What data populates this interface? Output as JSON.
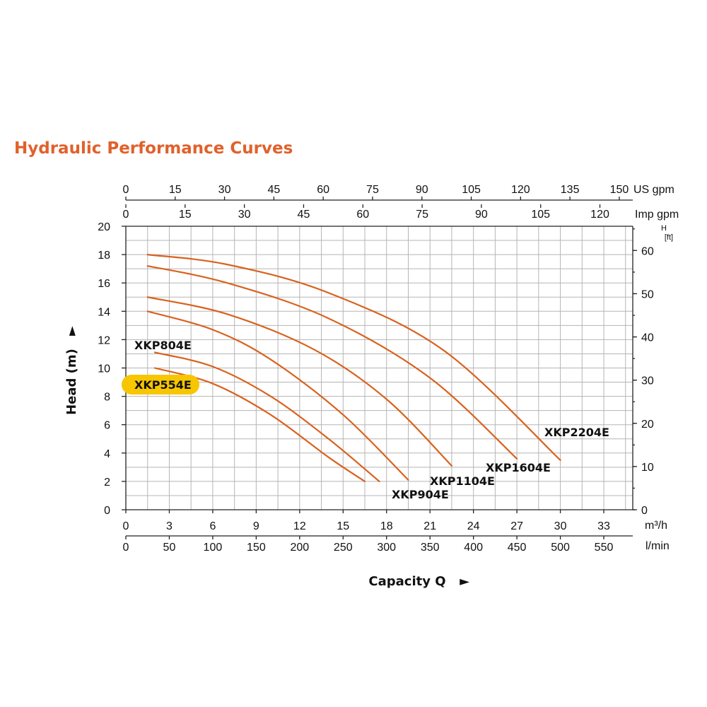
{
  "chart_data": {
    "type": "line",
    "title": "Hydraulic Performance Curves",
    "xlabel": "Capacity Q",
    "xlabel_arrow": "►",
    "ylabel": "Head (m)",
    "ylabel_arrow": "►",
    "xlim": [
      0,
      35
    ],
    "ylim": [
      0,
      20
    ],
    "grid": true,
    "x_unit": "m³/h",
    "x_ticks": [
      "0",
      "3",
      "6",
      "9",
      "12",
      "15",
      "18",
      "21",
      "24",
      "27",
      "30",
      "33"
    ],
    "y_ticks": [
      "0",
      "2",
      "4",
      "6",
      "8",
      "10",
      "12",
      "14",
      "16",
      "18",
      "20"
    ],
    "secondary_axes": {
      "lpm": {
        "unit": "l/min",
        "factor": 16.6667,
        "ticks": [
          "0",
          "50",
          "100",
          "150",
          "200",
          "250",
          "300",
          "350",
          "400",
          "450",
          "500",
          "550"
        ]
      },
      "us_gpm": {
        "unit": "US gpm",
        "factor": 4.4029,
        "ticks": [
          "0",
          "15",
          "30",
          "45",
          "60",
          "75",
          "90",
          "105",
          "120",
          "135",
          "150"
        ]
      },
      "imp_gpm": {
        "unit": "Imp gpm",
        "factor": 3.6662,
        "ticks": [
          "0",
          "15",
          "30",
          "45",
          "60",
          "75",
          "90",
          "105",
          "120"
        ]
      },
      "head_ft": {
        "unit_top": "H",
        "unit_bottom": "[ft]",
        "factor": 3.2808,
        "ticks": [
          "0",
          "10",
          "20",
          "30",
          "40",
          "50",
          "60"
        ]
      }
    },
    "series": [
      {
        "name": "XKP554E",
        "x": [
          2,
          6,
          10,
          14,
          16.5
        ],
        "y": [
          10.0,
          8.9,
          6.7,
          3.7,
          2.0
        ]
      },
      {
        "name": "XKP804E",
        "x": [
          2,
          6,
          10,
          14,
          17.5
        ],
        "y": [
          11.1,
          10.1,
          8.0,
          5.0,
          2.0
        ]
      },
      {
        "name": "XKP904E",
        "x": [
          1.5,
          6,
          10,
          15,
          19.5
        ],
        "y": [
          14.0,
          12.7,
          10.6,
          6.7,
          2.1
        ]
      },
      {
        "name": "XKP1104E",
        "x": [
          1.5,
          7,
          13,
          18,
          22.5
        ],
        "y": [
          15.0,
          13.8,
          11.3,
          7.8,
          3.1
        ]
      },
      {
        "name": "XKP1604E",
        "x": [
          1.5,
          7,
          14,
          21,
          27
        ],
        "y": [
          17.2,
          16.0,
          13.5,
          9.3,
          3.6
        ]
      },
      {
        "name": "XKP2204E",
        "x": [
          1.5,
          7,
          14,
          22,
          30
        ],
        "y": [
          18.0,
          17.3,
          15.3,
          11.2,
          3.5
        ]
      }
    ],
    "series_color": "#d9621f",
    "highlight_color": "#f7c600",
    "highlighted_series": "XKP554E"
  }
}
